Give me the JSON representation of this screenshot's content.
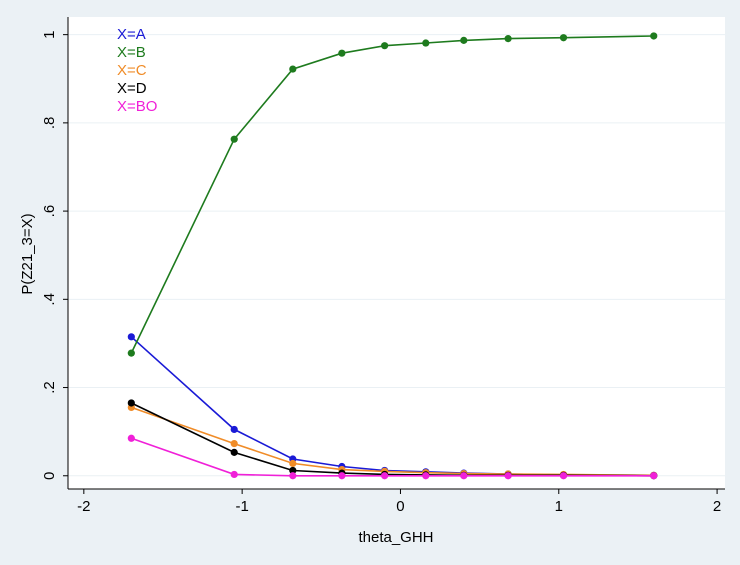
{
  "chart_data": {
    "type": "line",
    "xlabel": "theta_GHH",
    "ylabel": "P(Z21_3=X)",
    "xlim": [
      -2.1,
      2.05
    ],
    "ylim": [
      -0.03,
      1.04
    ],
    "x_ticks": [
      -2,
      -1,
      0,
      1,
      2
    ],
    "x_tick_labels": [
      "-2",
      "-1",
      "0",
      "1",
      "2"
    ],
    "y_ticks": [
      0,
      0.2,
      0.4,
      0.6,
      0.8,
      1
    ],
    "y_tick_labels": [
      "0",
      ".2",
      ".4",
      ".6",
      ".8",
      "1"
    ],
    "grid": true,
    "legend_position": "top-left",
    "x": [
      -1.7,
      -1.05,
      -0.68,
      -0.37,
      -0.1,
      0.16,
      0.4,
      0.68,
      1.03,
      1.6
    ],
    "series": [
      {
        "name": "X=A",
        "color": "#1a1ad6",
        "values": [
          0.315,
          0.105,
          0.038,
          0.021,
          0.012,
          0.009,
          0.006,
          0.004,
          0.002,
          0.001
        ]
      },
      {
        "name": "X=B",
        "color": "#1e7b1e",
        "values": [
          0.278,
          0.763,
          0.922,
          0.958,
          0.975,
          0.981,
          0.987,
          0.991,
          0.993,
          0.997
        ]
      },
      {
        "name": "X=C",
        "color": "#f08c28",
        "values": [
          0.155,
          0.073,
          0.028,
          0.014,
          0.01,
          0.007,
          0.005,
          0.004,
          0.003,
          0.001
        ]
      },
      {
        "name": "X=D",
        "color": "#000000",
        "values": [
          0.165,
          0.053,
          0.012,
          0.006,
          0.003,
          0.002,
          0.001,
          0.001,
          0.001,
          0.0
        ]
      },
      {
        "name": "X=BO",
        "color": "#f020d8",
        "values": [
          0.085,
          0.003,
          0.0,
          0.0,
          0.0,
          0.0,
          0.0,
          0.0,
          0.0,
          0.0
        ]
      }
    ]
  }
}
